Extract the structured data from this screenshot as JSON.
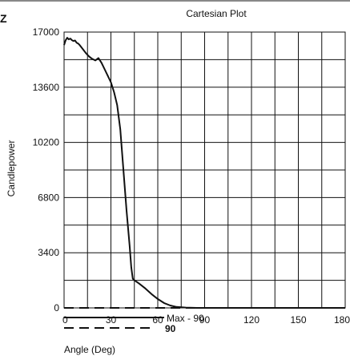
{
  "header": {
    "corner_letter": "Z"
  },
  "chart_data": {
    "type": "line",
    "title": "Cartesian Plot",
    "xlabel": "Angle (Deg)",
    "ylabel": "Candlepower",
    "xlim": [
      0,
      180
    ],
    "ylim": [
      0,
      17000
    ],
    "x_ticks": [
      "0",
      "30",
      "60",
      "90",
      "120",
      "150",
      "180"
    ],
    "y_ticks": [
      "0",
      "3400",
      "6800",
      "10200",
      "13600",
      "17000"
    ],
    "grid": true,
    "legend": [
      {
        "label": "Max - 90",
        "style": "solid",
        "color": "#111111"
      },
      {
        "label": "90",
        "style": "dashed",
        "color": "#111111"
      }
    ],
    "series": [
      {
        "name": "Max - 90",
        "style": "solid",
        "color": "#111111",
        "points": [
          [
            0,
            16200
          ],
          [
            1,
            16500
          ],
          [
            2,
            16650
          ],
          [
            3,
            16550
          ],
          [
            4,
            16600
          ],
          [
            5,
            16500
          ],
          [
            6,
            16450
          ],
          [
            7,
            16480
          ],
          [
            8,
            16350
          ],
          [
            9,
            16300
          ],
          [
            10,
            16200
          ],
          [
            12,
            15950
          ],
          [
            14,
            15700
          ],
          [
            16,
            15500
          ],
          [
            18,
            15350
          ],
          [
            20,
            15250
          ],
          [
            22,
            15400
          ],
          [
            24,
            15100
          ],
          [
            26,
            14700
          ],
          [
            28,
            14300
          ],
          [
            30,
            13900
          ],
          [
            32,
            13300
          ],
          [
            34,
            12500
          ],
          [
            36,
            11000
          ],
          [
            38,
            8500
          ],
          [
            40,
            6000
          ],
          [
            42,
            3800
          ],
          [
            43,
            2500
          ],
          [
            44,
            1800
          ],
          [
            45,
            1700
          ],
          [
            48,
            1500
          ],
          [
            52,
            1200
          ],
          [
            56,
            850
          ],
          [
            60,
            550
          ],
          [
            64,
            300
          ],
          [
            68,
            150
          ],
          [
            72,
            60
          ],
          [
            78,
            20
          ],
          [
            85,
            0
          ],
          [
            180,
            0
          ]
        ]
      },
      {
        "name": "90",
        "style": "dashed",
        "color": "#111111",
        "points": [
          [
            0,
            0
          ],
          [
            180,
            0
          ]
        ]
      }
    ]
  }
}
